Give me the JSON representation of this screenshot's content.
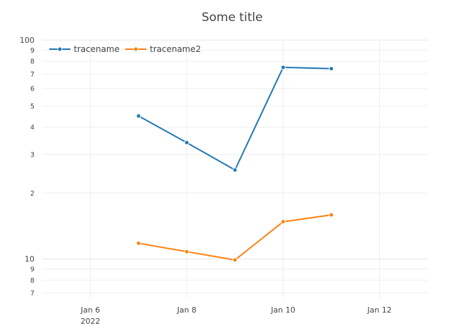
{
  "chart_data": {
    "type": "line",
    "title": "Some title",
    "xlabel": "",
    "ylabel": "",
    "y_scale": "log",
    "ylim": [
      6.6,
      100
    ],
    "x_range": [
      "2022-01-05",
      "2022-01-13"
    ],
    "x_ticks": [
      {
        "date": "2022-01-06",
        "label": "Jan 6",
        "sublabel": "2022"
      },
      {
        "date": "2022-01-08",
        "label": "Jan 8",
        "sublabel": ""
      },
      {
        "date": "2022-01-10",
        "label": "Jan 10",
        "sublabel": ""
      },
      {
        "date": "2022-01-12",
        "label": "Jan 12",
        "sublabel": ""
      }
    ],
    "y_major_ticks": [
      {
        "value": 10,
        "label": "10"
      },
      {
        "value": 100,
        "label": "100"
      }
    ],
    "y_minor_ticks": [
      {
        "value": 7,
        "label": "7"
      },
      {
        "value": 8,
        "label": "8"
      },
      {
        "value": 9,
        "label": "9"
      },
      {
        "value": 20,
        "label": "2"
      },
      {
        "value": 30,
        "label": "3"
      },
      {
        "value": 40,
        "label": "4"
      },
      {
        "value": 50,
        "label": "5"
      },
      {
        "value": 60,
        "label": "6"
      },
      {
        "value": 70,
        "label": "7"
      },
      {
        "value": 80,
        "label": "8"
      },
      {
        "value": 90,
        "label": "9"
      }
    ],
    "grid": true,
    "legend": {
      "placement": "top-left",
      "orientation": "horizontal"
    },
    "series": [
      {
        "name": "tracename",
        "color": "#1f77b4",
        "x": [
          "2022-01-07",
          "2022-01-08",
          "2022-01-09",
          "2022-01-10",
          "2022-01-11"
        ],
        "y": [
          45,
          34,
          25.5,
          75,
          74
        ]
      },
      {
        "name": "tracename2",
        "color": "#ff7f0e",
        "x": [
          "2022-01-07",
          "2022-01-08",
          "2022-01-09",
          "2022-01-10",
          "2022-01-11"
        ],
        "y": [
          11.8,
          10.8,
          9.9,
          14.8,
          15.9
        ]
      }
    ]
  }
}
